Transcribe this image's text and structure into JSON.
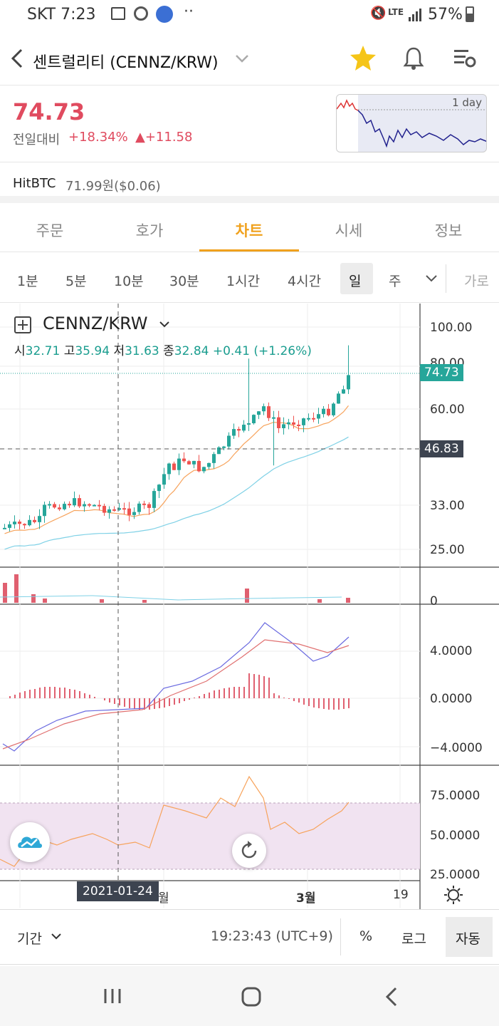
{
  "status_bar": {
    "carrier_time": "SKT 7:23",
    "battery": "57%",
    "network": "LTE"
  },
  "header": {
    "title": "센트럴리티 (CENNZ/KRW)",
    "icons": [
      "back-arrow-icon",
      "chevron-down-icon",
      "star-icon",
      "bell-icon",
      "settings-icon"
    ]
  },
  "price": {
    "current": "74.73",
    "change_label": "전일대비",
    "change_pct": "+18.34%",
    "change_abs": "▲+11.58",
    "mini_chart_label": "1 day"
  },
  "exchange": {
    "name": "HitBTC",
    "value": "71.99원($0.06)"
  },
  "tabs": [
    "주문",
    "호가",
    "차트",
    "시세",
    "정보"
  ],
  "active_tab": "차트",
  "intervals": [
    "1분",
    "5분",
    "10분",
    "30분",
    "1시간",
    "4시간",
    "일",
    "주"
  ],
  "selected_interval": "일",
  "interval_more": "가로",
  "chart": {
    "symbol": "CENNZ/KRW",
    "ohlc": {
      "o_label": "시",
      "o": "32.71",
      "h_label": "고",
      "h": "35.94",
      "l_label": "저",
      "l": "31.63",
      "c_label": "종",
      "c": "32.84",
      "chg": "+0.41 (+1.26%)"
    },
    "price_axis": [
      "100.00",
      "80.00",
      "60.00",
      "33.00",
      "25.00"
    ],
    "current_tag": "74.73",
    "crosshair_tag": "46.83",
    "volume_axis": [
      "0"
    ],
    "macd_axis": [
      "4.0000",
      "0.0000",
      "−4.0000"
    ],
    "rsi_axis": [
      "75.0000",
      "50.0000",
      "25.0000"
    ],
    "time_axis": [
      "월",
      "3월",
      "19"
    ],
    "crosshair_date": "2021-01-24",
    "colors": {
      "up": "#26a69a",
      "down": "#ef5350",
      "ma1": "#f7a35c",
      "ma2": "#7fd1e6",
      "rsi_band": "#f1e3f1"
    }
  },
  "bottom_bar": {
    "period": "기간",
    "time": "19:23:43 (UTC+9)",
    "percent": "%",
    "log": "로그",
    "auto": "자동"
  }
}
